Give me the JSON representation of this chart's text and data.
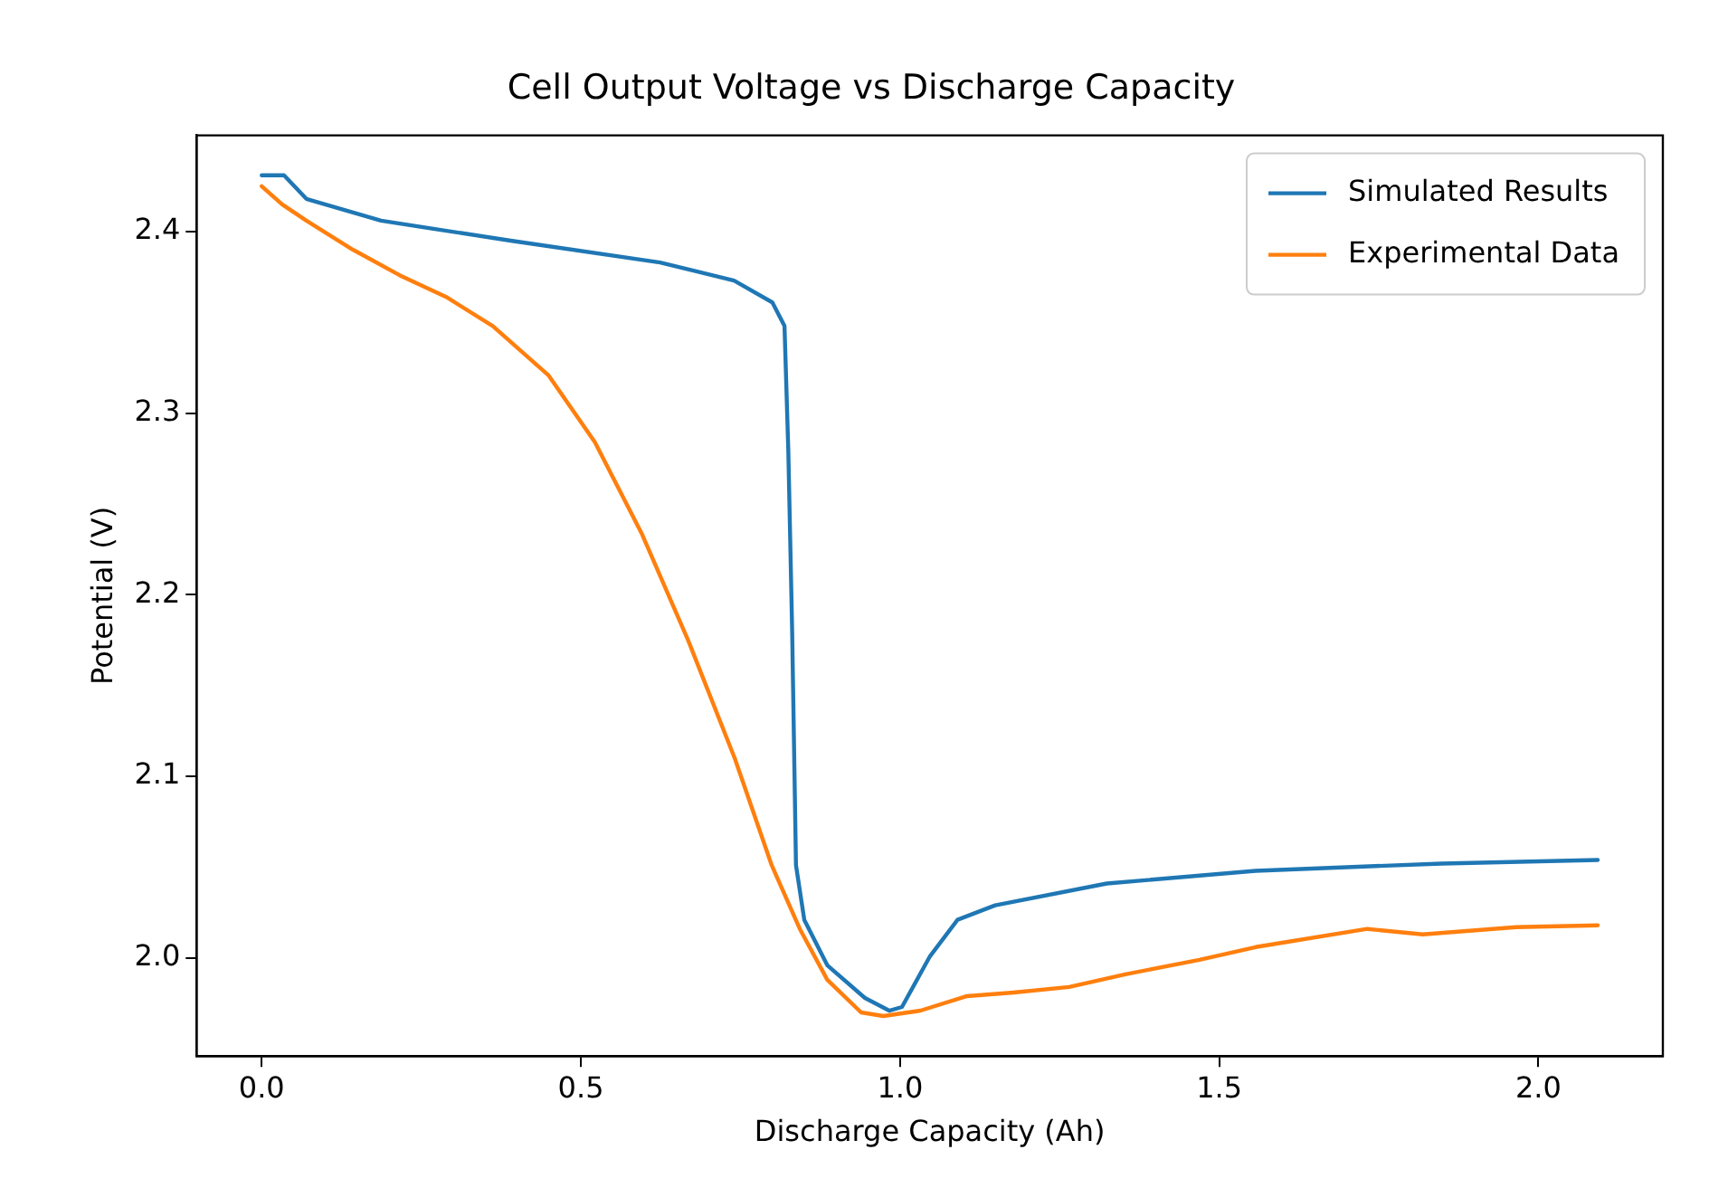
{
  "chart_data": {
    "type": "line",
    "title": "Cell Output Voltage vs Discharge Capacity",
    "xlabel": "Discharge Capacity (Ah)",
    "ylabel": "Potential (V)",
    "xlim": [
      -0.102,
      2.195
    ],
    "xticks": [
      {
        "value": 0,
        "label": "0.0"
      },
      0.5,
      {
        "value": 1,
        "label": "1.0"
      },
      1.5,
      {
        "value": 2,
        "label": "2.0"
      }
    ],
    "ylim": [
      1.946,
      2.453
    ],
    "yticks": [
      {
        "value": 2,
        "label": "2.0"
      },
      2.1,
      2.2,
      2.3,
      2.4
    ],
    "grid": false,
    "legend": "top right",
    "line_style": "solid",
    "marker": "none",
    "series": [
      {
        "name": "Simulated Results",
        "color": "#1f77b4",
        "x": [
          0,
          0.035,
          0.07,
          0.187,
          0.39,
          0.624,
          0.74,
          0.8,
          0.819,
          0.825,
          0.831,
          0.837,
          0.85,
          0.886,
          0.945,
          0.983,
          1.003,
          1.047,
          1.09,
          1.149,
          1.324,
          1.557,
          1.848,
          2.093
        ],
        "values": [
          2.431,
          2.431,
          2.418,
          2.406,
          2.395,
          2.383,
          2.373,
          2.361,
          2.348,
          2.279,
          2.18,
          2.051,
          2.021,
          1.996,
          1.978,
          1.971,
          1.973,
          2.001,
          2.021,
          2.029,
          2.041,
          2.048,
          2.052,
          2.054
        ]
      },
      {
        "name": "Experimental Data",
        "color": "#ff7f0e",
        "x": [
          0,
          0.032,
          0.07,
          0.143,
          0.216,
          0.289,
          0.362,
          0.449,
          0.522,
          0.595,
          0.668,
          0.741,
          0.799,
          0.843,
          0.886,
          0.939,
          0.974,
          1.032,
          1.105,
          1.178,
          1.265,
          1.353,
          1.469,
          1.557,
          1.732,
          1.819,
          1.965,
          2.093
        ],
        "values": [
          2.425,
          2.415,
          2.406,
          2.39,
          2.376,
          2.364,
          2.348,
          2.321,
          2.284,
          2.234,
          2.175,
          2.11,
          2.051,
          2.016,
          1.988,
          1.97,
          1.968,
          1.971,
          1.979,
          1.981,
          1.984,
          1.991,
          1.999,
          2.006,
          2.016,
          2.013,
          2.017,
          2.018
        ]
      }
    ]
  }
}
